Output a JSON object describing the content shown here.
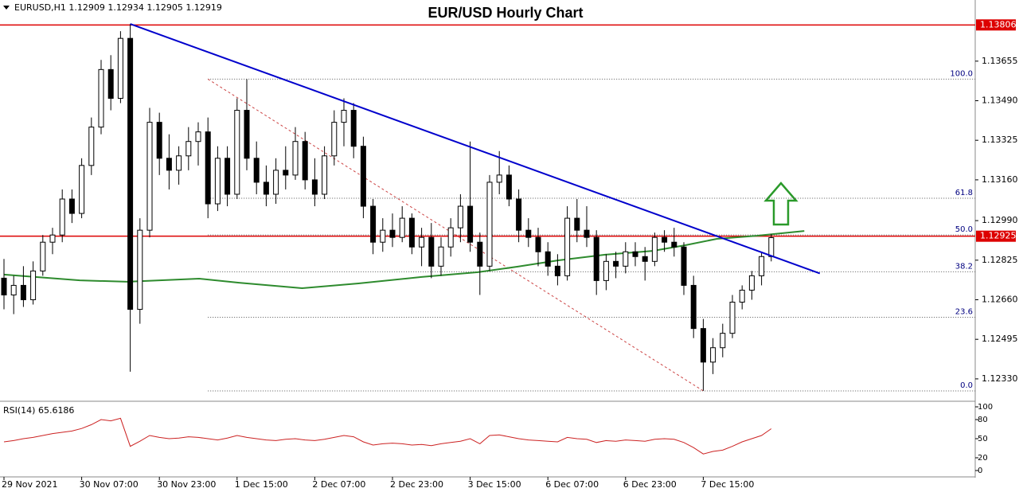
{
  "chart_data": {
    "type": "candlestick",
    "title": "EUR/USD Hourly Chart",
    "header": "EURUSD,H1  1.12909 1.12934 1.12905 1.12919",
    "ylim": [
      1.1224,
      1.1391
    ],
    "yticks": [
      {
        "value": 1.13655,
        "label": "1.13655"
      },
      {
        "value": 1.1349,
        "label": "1.13490"
      },
      {
        "value": 1.13325,
        "label": "1.13325"
      },
      {
        "value": 1.1316,
        "label": "1.13160"
      },
      {
        "value": 1.1299,
        "label": "1.12990"
      },
      {
        "value": 1.12825,
        "label": "1.12825"
      },
      {
        "value": 1.1266,
        "label": "1.12660"
      },
      {
        "value": 1.12495,
        "label": "1.12495"
      },
      {
        "value": 1.1233,
        "label": "1.12330"
      }
    ],
    "xticks": [
      {
        "value": 0,
        "label": "29 Nov 2021"
      },
      {
        "value": 8,
        "label": "30 Nov 07:00"
      },
      {
        "value": 16,
        "label": "30 Nov 23:00"
      },
      {
        "value": 24,
        "label": "1 Dec 15:00"
      },
      {
        "value": 32,
        "label": "2 Dec 07:00"
      },
      {
        "value": 40,
        "label": "2 Dec 23:00"
      },
      {
        "value": 48,
        "label": "3 Dec 15:00"
      },
      {
        "value": 56,
        "label": "6 Dec 07:00"
      },
      {
        "value": 64,
        "label": "6 Dec 23:00"
      },
      {
        "value": 72,
        "label": "7 Dec 15:00"
      }
    ],
    "bull_color": "#ffffff",
    "bear_color": "#000000",
    "candles": [
      [
        1.1275,
        1.1283,
        1.1262,
        1.1268
      ],
      [
        1.1268,
        1.1276,
        1.126,
        1.1272
      ],
      [
        1.1272,
        1.128,
        1.1263,
        1.1266
      ],
      [
        1.1266,
        1.1282,
        1.1264,
        1.1278
      ],
      [
        1.1278,
        1.1293,
        1.1276,
        1.129
      ],
      [
        1.129,
        1.1296,
        1.1285,
        1.1293
      ],
      [
        1.1293,
        1.1312,
        1.129,
        1.1308
      ],
      [
        1.1308,
        1.1312,
        1.1298,
        1.1302
      ],
      [
        1.1302,
        1.1325,
        1.13,
        1.1322
      ],
      [
        1.1322,
        1.1342,
        1.1318,
        1.1338
      ],
      [
        1.1338,
        1.1366,
        1.1335,
        1.1362
      ],
      [
        1.1362,
        1.1368,
        1.1345,
        1.135
      ],
      [
        1.135,
        1.1378,
        1.1348,
        1.1375
      ],
      [
        1.1375,
        1.1381,
        1.1236,
        1.1262
      ],
      [
        1.1262,
        1.13,
        1.1256,
        1.1295
      ],
      [
        1.1295,
        1.1346,
        1.1292,
        1.134
      ],
      [
        1.134,
        1.1344,
        1.1318,
        1.1325
      ],
      [
        1.1325,
        1.1335,
        1.1312,
        1.132
      ],
      [
        1.132,
        1.133,
        1.1314,
        1.1326
      ],
      [
        1.1326,
        1.1338,
        1.132,
        1.1332
      ],
      [
        1.1332,
        1.134,
        1.1322,
        1.1336
      ],
      [
        1.1336,
        1.1342,
        1.13,
        1.1306
      ],
      [
        1.1306,
        1.133,
        1.1303,
        1.1325
      ],
      [
        1.1325,
        1.133,
        1.1305,
        1.131
      ],
      [
        1.131,
        1.135,
        1.1308,
        1.1345
      ],
      [
        1.1345,
        1.1358,
        1.132,
        1.1325
      ],
      [
        1.1325,
        1.1332,
        1.131,
        1.1315
      ],
      [
        1.1315,
        1.1322,
        1.1305,
        1.131
      ],
      [
        1.131,
        1.1325,
        1.1306,
        1.132
      ],
      [
        1.132,
        1.133,
        1.1312,
        1.1318
      ],
      [
        1.1318,
        1.1338,
        1.1316,
        1.1332
      ],
      [
        1.1332,
        1.1336,
        1.1312,
        1.1316
      ],
      [
        1.1316,
        1.1325,
        1.1305,
        1.131
      ],
      [
        1.131,
        1.133,
        1.1308,
        1.1326
      ],
      [
        1.1326,
        1.1345,
        1.1322,
        1.134
      ],
      [
        1.134,
        1.135,
        1.133,
        1.1345
      ],
      [
        1.1345,
        1.1348,
        1.1325,
        1.133
      ],
      [
        1.133,
        1.1334,
        1.13,
        1.1305
      ],
      [
        1.1305,
        1.1308,
        1.1285,
        1.129
      ],
      [
        1.129,
        1.13,
        1.1286,
        1.1295
      ],
      [
        1.1295,
        1.1302,
        1.1288,
        1.1292
      ],
      [
        1.1292,
        1.1305,
        1.129,
        1.13
      ],
      [
        1.13,
        1.1302,
        1.1285,
        1.1288
      ],
      [
        1.1288,
        1.1296,
        1.128,
        1.1292
      ],
      [
        1.1292,
        1.1298,
        1.1275,
        1.128
      ],
      [
        1.128,
        1.1292,
        1.1276,
        1.1288
      ],
      [
        1.1288,
        1.13,
        1.1284,
        1.1296
      ],
      [
        1.1296,
        1.131,
        1.129,
        1.1305
      ],
      [
        1.1305,
        1.1332,
        1.1286,
        1.129
      ],
      [
        1.129,
        1.1294,
        1.1268,
        1.128
      ],
      [
        1.128,
        1.1318,
        1.1278,
        1.1315
      ],
      [
        1.1315,
        1.1328,
        1.131,
        1.1318
      ],
      [
        1.1318,
        1.1322,
        1.1305,
        1.1308
      ],
      [
        1.1308,
        1.1312,
        1.129,
        1.1295
      ],
      [
        1.1295,
        1.13,
        1.1288,
        1.1292
      ],
      [
        1.1292,
        1.1296,
        1.128,
        1.1286
      ],
      [
        1.1286,
        1.129,
        1.1276,
        1.128
      ],
      [
        1.128,
        1.1285,
        1.1272,
        1.1276
      ],
      [
        1.1276,
        1.1305,
        1.1274,
        1.13
      ],
      [
        1.13,
        1.1308,
        1.129,
        1.1295
      ],
      [
        1.1295,
        1.1305,
        1.1288,
        1.1292
      ],
      [
        1.1292,
        1.1295,
        1.1268,
        1.1274
      ],
      [
        1.1274,
        1.1285,
        1.127,
        1.1282
      ],
      [
        1.1282,
        1.1286,
        1.1275,
        1.128
      ],
      [
        1.128,
        1.129,
        1.1277,
        1.1286
      ],
      [
        1.1286,
        1.129,
        1.128,
        1.1284
      ],
      [
        1.1284,
        1.1288,
        1.1274,
        1.1282
      ],
      [
        1.1282,
        1.1294,
        1.128,
        1.1292
      ],
      [
        1.1292,
        1.1295,
        1.1286,
        1.129
      ],
      [
        1.129,
        1.1296,
        1.1284,
        1.1288
      ],
      [
        1.1288,
        1.129,
        1.1268,
        1.1272
      ],
      [
        1.1272,
        1.1276,
        1.125,
        1.1254
      ],
      [
        1.1254,
        1.1258,
        1.1228,
        1.124
      ],
      [
        1.124,
        1.125,
        1.1235,
        1.1246
      ],
      [
        1.1246,
        1.1256,
        1.1242,
        1.1252
      ],
      [
        1.1252,
        1.1268,
        1.125,
        1.1265
      ],
      [
        1.1265,
        1.1272,
        1.1262,
        1.127
      ],
      [
        1.127,
        1.1278,
        1.1266,
        1.1276
      ],
      [
        1.1276,
        1.1286,
        1.1272,
        1.1284
      ],
      [
        1.1284,
        1.12934,
        1.1282,
        1.12919
      ]
    ],
    "levels": [
      {
        "value": 1.13806,
        "color": "#dd0000"
      },
      {
        "value": 1.12925,
        "color": "#dd0000"
      }
    ],
    "trendline": {
      "x": [
        13,
        84
      ],
      "values": [
        1.1381,
        1.1277
      ],
      "color": "#0000cc"
    },
    "moving_average": {
      "x": [
        0,
        7.8,
        12.7,
        20.1,
        24.2,
        30.7,
        36.5,
        43,
        48.8,
        52.9,
        57,
        61.9,
        66.8,
        70.1,
        73.4,
        77.5,
        82.4
      ],
      "values": [
        1.12765,
        1.12741,
        1.12735,
        1.12748,
        1.12731,
        1.12708,
        1.12728,
        1.12755,
        1.12775,
        1.12798,
        1.12824,
        1.12848,
        1.12864,
        1.12887,
        1.12914,
        1.12927,
        1.12947
      ],
      "color": "#2e8b2e"
    },
    "fibonacci": {
      "high": 1.1358,
      "low": 1.1228,
      "start": 21,
      "end": 72,
      "color": "#000080",
      "levels": [
        {
          "value": 100,
          "label": "100.0"
        },
        61.8,
        {
          "value": 50,
          "label": "50.0"
        },
        38.2,
        23.6,
        {
          "value": 0,
          "label": "0.0"
        }
      ]
    },
    "rsi": {
      "label": "RSI(14) 65.6186",
      "color": "#cc2222",
      "ylim": [
        0,
        100
      ],
      "yticks": [
        100,
        80,
        50,
        20,
        0
      ],
      "values": [
        45,
        47,
        50,
        52,
        55,
        58,
        60,
        62,
        66,
        72,
        80,
        78,
        82,
        38,
        46,
        55,
        52,
        50,
        51,
        53,
        52,
        50,
        48,
        51,
        55,
        52,
        50,
        48,
        47,
        49,
        50,
        48,
        47,
        49,
        52,
        55,
        53,
        45,
        40,
        42,
        43,
        42,
        40,
        41,
        39,
        42,
        44,
        46,
        50,
        42,
        55,
        56,
        53,
        50,
        48,
        47,
        46,
        45,
        52,
        50,
        49,
        44,
        47,
        46,
        48,
        47,
        46,
        49,
        50,
        49,
        44,
        36,
        26,
        30,
        32,
        38,
        45,
        50,
        55,
        65.6186
      ]
    }
  }
}
